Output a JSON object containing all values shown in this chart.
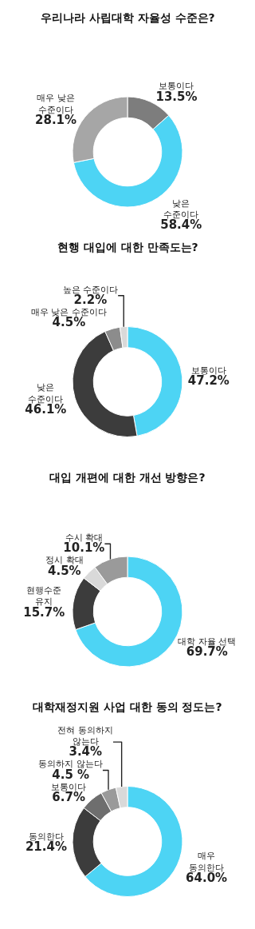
{
  "chart_data": [
    {
      "type": "donut",
      "title": "우리나라 사립대학 자율성 수준은?",
      "categories": [
        "보통이다",
        "낮은\n수준이다",
        "매우 낮은\n수준이다"
      ],
      "values": [
        13.5,
        58.4,
        28.1
      ],
      "value_labels": [
        "13.5%",
        "58.4%",
        "28.1%"
      ],
      "colors": [
        "#7d7d7d",
        "#4dd4f4",
        "#a6a6a6"
      ]
    },
    {
      "type": "donut",
      "title": "현행 대입에 대한 만족도는?",
      "categories": [
        "보통이다",
        "낮은\n수준이다",
        "매우 낮은 수준이다",
        "높은 수준이다"
      ],
      "values": [
        47.2,
        46.1,
        4.5,
        2.2
      ],
      "value_labels": [
        "47.2%",
        "46.1%",
        "4.5%",
        "2.2%"
      ],
      "colors": [
        "#4dd4f4",
        "#3c3c3c",
        "#8c8c8c",
        "#d9d9d9"
      ]
    },
    {
      "type": "donut",
      "title": "대입 개편에 대한 개선 방향은?",
      "categories": [
        "대학 자율 선택",
        "현행수준\n유지",
        "정시 확대",
        "수시 확대"
      ],
      "values": [
        69.7,
        15.7,
        4.5,
        10.1
      ],
      "value_labels": [
        "69.7%",
        "15.7%",
        "4.5%",
        "10.1%"
      ],
      "colors": [
        "#4dd4f4",
        "#3c3c3c",
        "#d9d9d9",
        "#9a9a9a"
      ]
    },
    {
      "type": "donut",
      "title": "대학재정지원 사업 대한 동의 정도는?",
      "categories": [
        "매우\n동의한다",
        "동의한다",
        "보통이다",
        "동의하지 않는다",
        "전혀 동의하지\n않는다"
      ],
      "values": [
        64.0,
        21.4,
        6.7,
        4.5,
        3.4
      ],
      "value_labels": [
        "64.0%",
        "21.4%",
        "6.7%",
        "4.5 %",
        "3.4%"
      ],
      "colors": [
        "#4dd4f4",
        "#3c3c3c",
        "#6e6e6e",
        "#9a9a9a",
        "#d9d9d9"
      ]
    }
  ]
}
